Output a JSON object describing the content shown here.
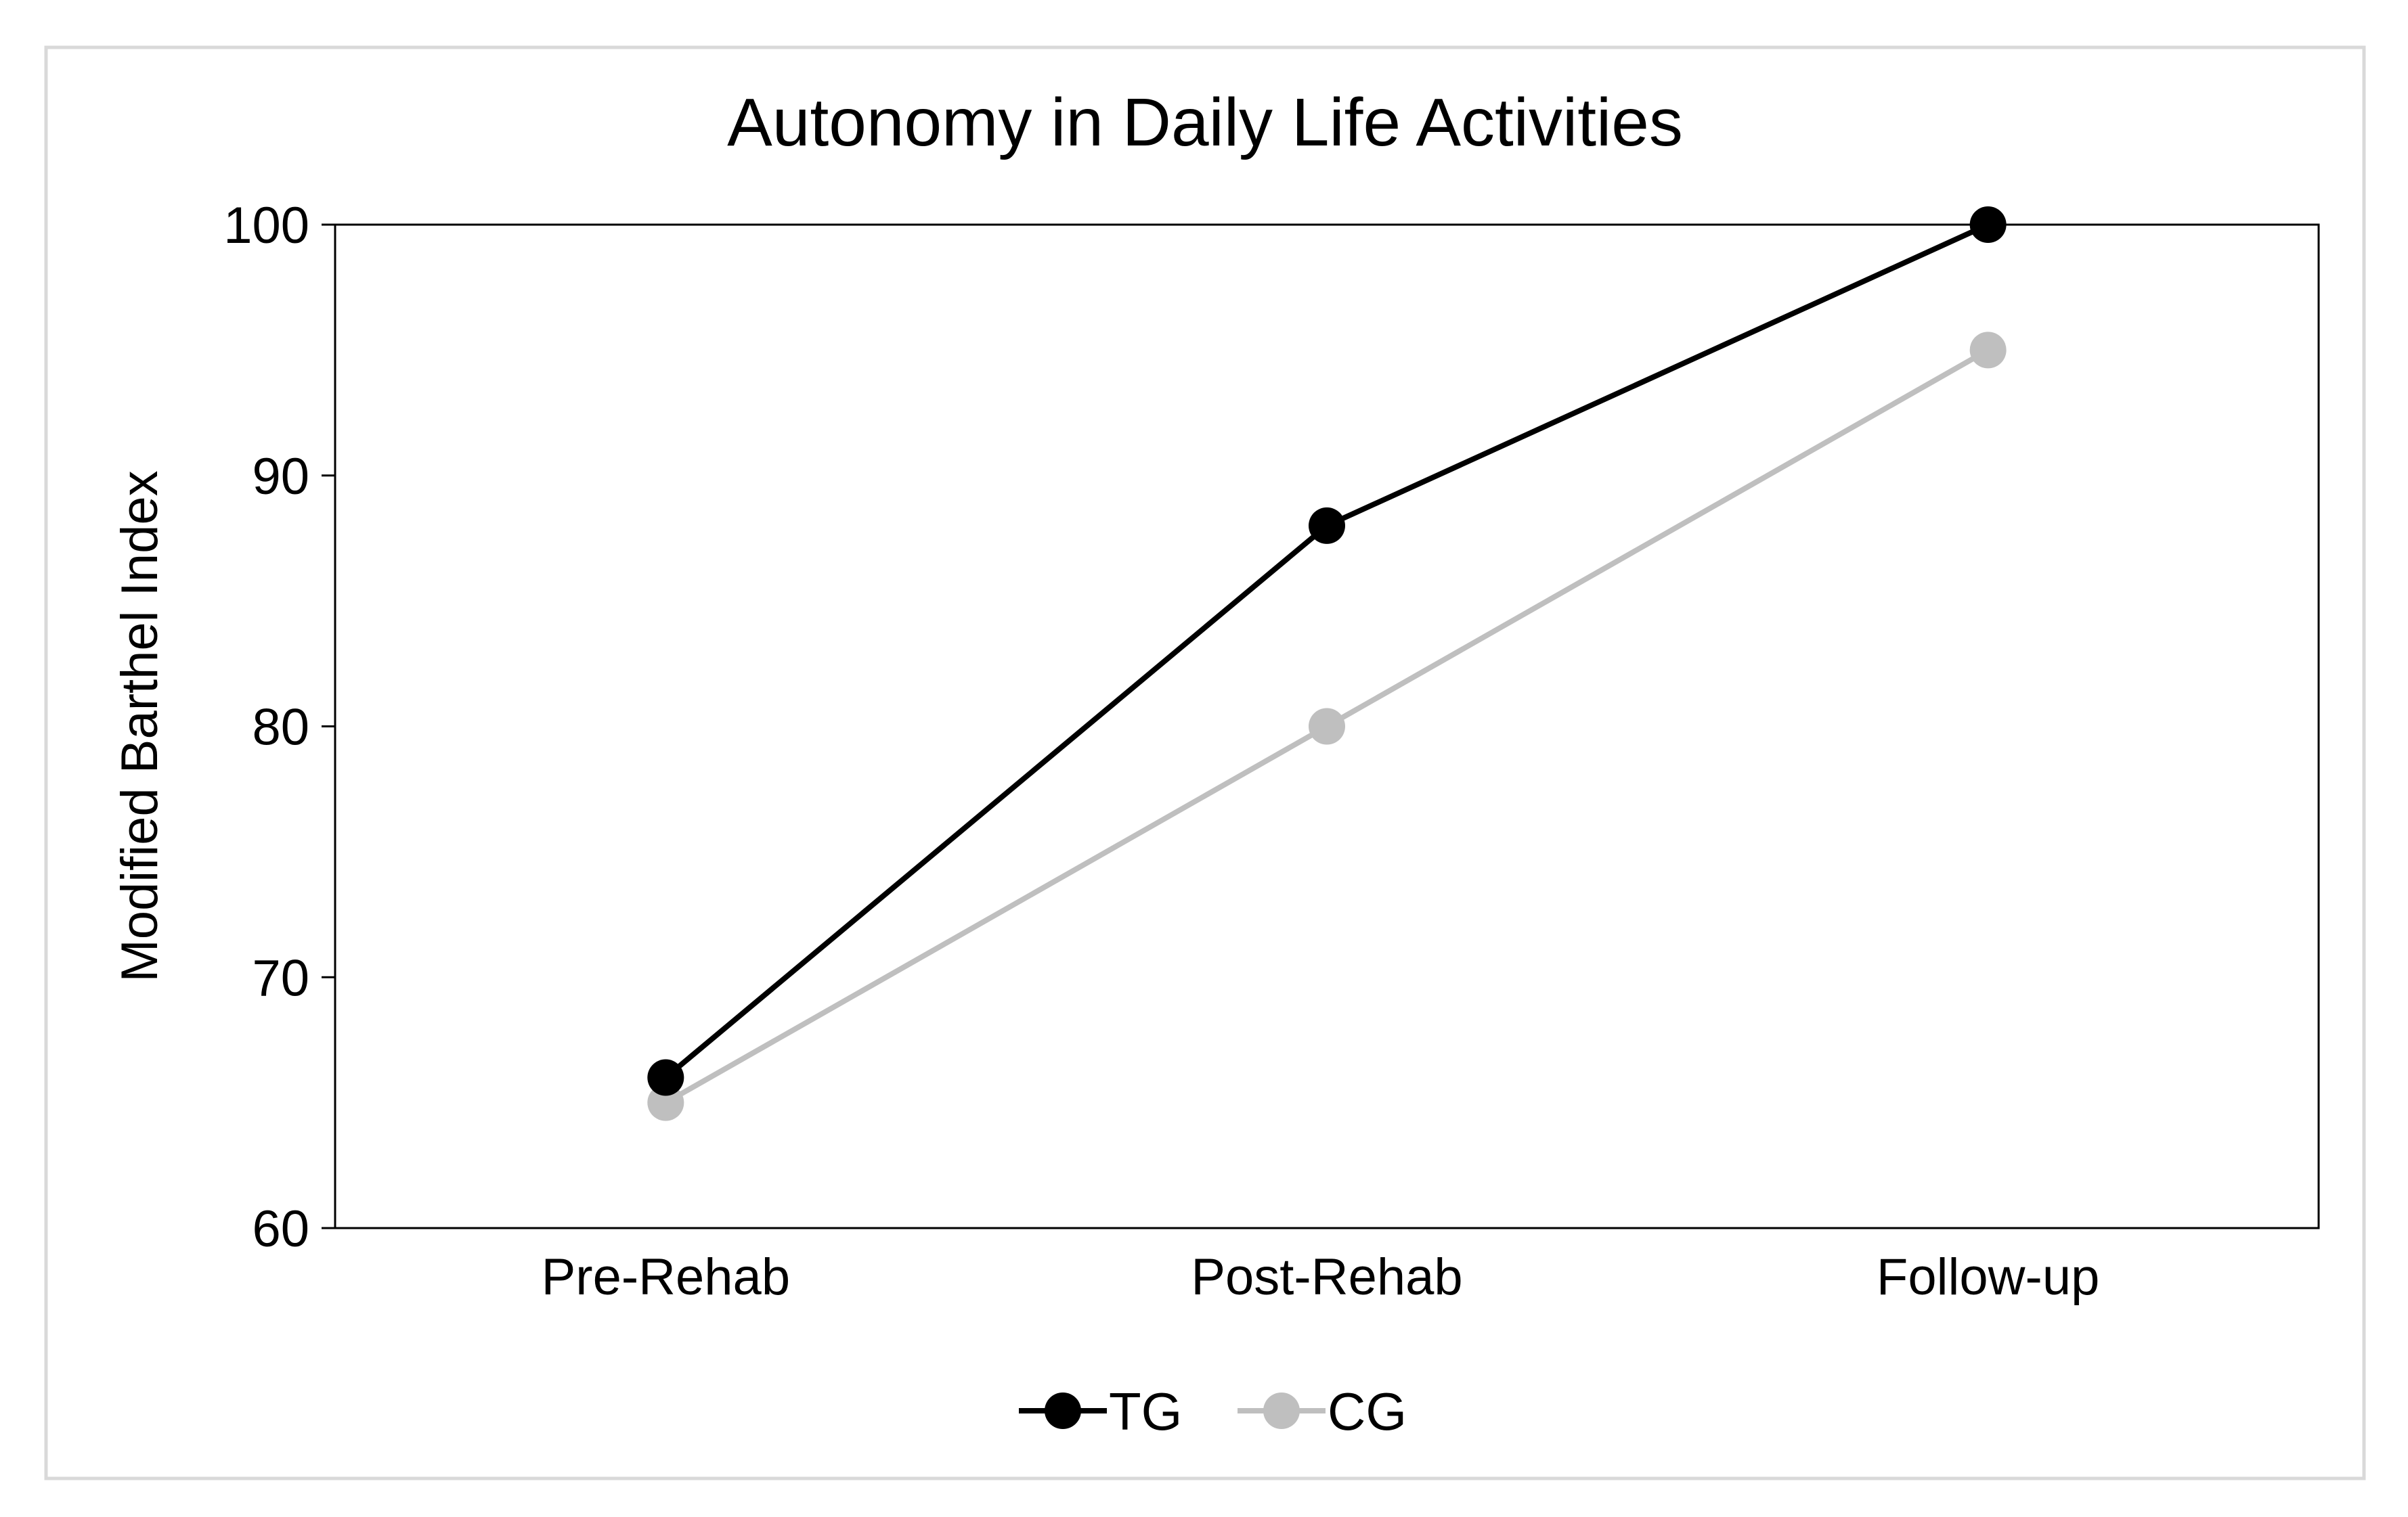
{
  "chart_data": {
    "type": "line",
    "title": "Autonomy in Daily Life Activities",
    "xlabel": "",
    "ylabel": "Modified Barthel Index",
    "categories": [
      "Pre-Rehab",
      "Post-Rehab",
      "Follow-up"
    ],
    "ylim": [
      60,
      100
    ],
    "yticks": [
      "60",
      "70",
      "80",
      "90",
      "100"
    ],
    "grid": false,
    "legend_position": "bottom",
    "series": [
      {
        "name": "TG",
        "values": [
          66,
          88,
          100
        ],
        "color": "#000000"
      },
      {
        "name": "CG",
        "values": [
          65,
          80,
          95
        ],
        "color": "#bfbfbf"
      }
    ]
  }
}
